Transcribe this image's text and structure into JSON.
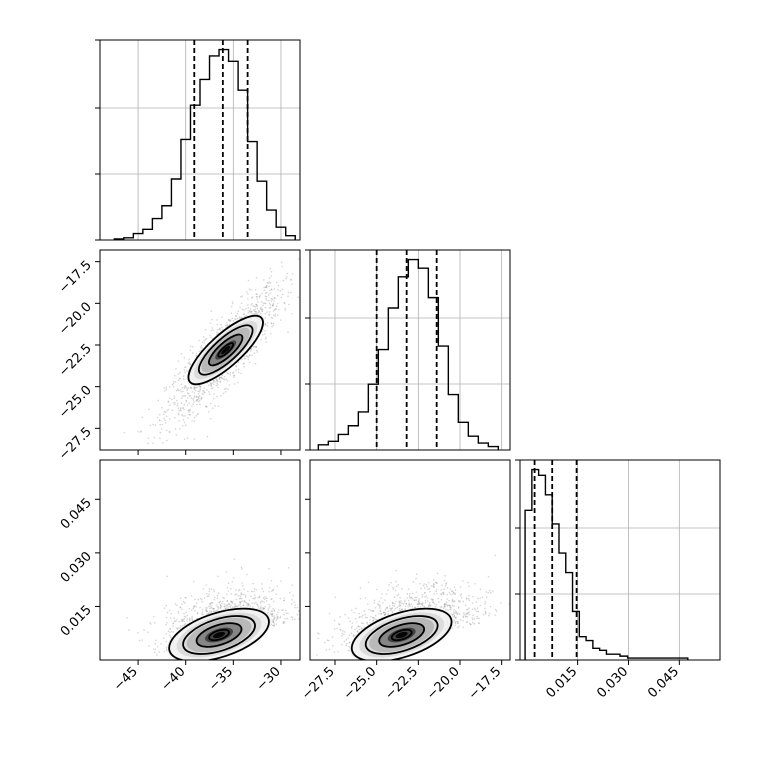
{
  "chart_data": [
    {
      "type": "histogram",
      "panel": "1,1",
      "grid": true,
      "xlim": [
        -49,
        -28
      ],
      "xticks": [
        -45,
        -40,
        -35,
        -30
      ],
      "x": [
        -47,
        -46,
        -45,
        -44,
        -43,
        -42,
        -41,
        -40,
        -39,
        -38,
        -37,
        -36,
        -35,
        -34,
        -33,
        -32,
        -31,
        -30,
        -29
      ],
      "values": [
        1,
        2,
        6,
        10,
        20,
        32,
        57,
        94,
        126,
        150,
        172,
        178,
        167,
        140,
        92,
        55,
        28,
        12,
        4
      ],
      "quantiles": [
        -39.1,
        -36.1,
        -33.5
      ],
      "xtick_labels": [
        "",
        "",
        "",
        ""
      ],
      "ytick_labels": [
        "",
        "",
        "",
        ""
      ]
    },
    {
      "type": "histogram",
      "panel": "2,2",
      "grid": true,
      "xlim": [
        -29,
        -17
      ],
      "xticks": [
        -27.5,
        -25.0,
        -22.5,
        -20.0,
        -17.5
      ],
      "x": [
        -28.2,
        -27.6,
        -27.0,
        -26.4,
        -25.8,
        -25.2,
        -24.6,
        -24.0,
        -23.4,
        -22.8,
        -22.2,
        -21.6,
        -21.0,
        -20.4,
        -19.8,
        -19.2,
        -18.6,
        -18.0
      ],
      "values": [
        3,
        5,
        9,
        14,
        22,
        38,
        58,
        82,
        100,
        110,
        105,
        88,
        60,
        32,
        16,
        8,
        4,
        2
      ],
      "quantiles": [
        -25.0,
        -23.2,
        -21.4
      ],
      "xtick_labels": [
        "",
        "",
        "",
        "",
        ""
      ],
      "ytick_labels": [
        "",
        "",
        "",
        ""
      ]
    },
    {
      "type": "histogram",
      "panel": "3,3",
      "grid": true,
      "xlim": [
        -0.002,
        0.057
      ],
      "xticks": [
        0.015,
        0.03,
        0.045
      ],
      "x": [
        0.0005,
        0.0025,
        0.0045,
        0.0065,
        0.0085,
        0.0105,
        0.0125,
        0.0145,
        0.0165,
        0.0185,
        0.0205,
        0.0225,
        0.0245,
        0.0265,
        0.0285,
        0.031,
        0.035,
        0.04,
        0.045
      ],
      "values": [
        77,
        98,
        95,
        85,
        70,
        55,
        45,
        25,
        12,
        10,
        6,
        5,
        3,
        3,
        2,
        1,
        1,
        1,
        1
      ],
      "quantiles": [
        0.0023,
        0.0075,
        0.0147
      ],
      "xtick_labels": [
        "0.015",
        "0.030",
        "0.045"
      ],
      "ytick_labels": [
        "",
        "",
        "",
        ""
      ]
    },
    {
      "type": "scatter",
      "panel": "2,1",
      "grid": false,
      "xlim": [
        -49,
        -28
      ],
      "ylim": [
        -28.8,
        -16.8
      ],
      "xticks": [
        -45,
        -40,
        -35,
        -30
      ],
      "yticks": [
        -27.5,
        -25.0,
        -22.5,
        -20.0,
        -17.5
      ],
      "xtick_labels": [
        "",
        "",
        "",
        ""
      ],
      "ytick_labels": [
        "−27.5",
        "−25.0",
        "−22.5",
        "−20.0",
        "−17.5"
      ]
    },
    {
      "type": "scatter",
      "panel": "3,1",
      "grid": false,
      "xlim": [
        -49,
        -28
      ],
      "ylim": [
        0,
        0.056
      ],
      "xticks": [
        -45,
        -40,
        -35,
        -30
      ],
      "yticks": [
        0.015,
        0.03,
        0.045
      ],
      "xtick_labels": [
        "−45",
        "−40",
        "−35",
        "−30"
      ],
      "ytick_labels": [
        "0.015",
        "0.030",
        "0.045"
      ]
    },
    {
      "type": "scatter",
      "panel": "3,2",
      "grid": false,
      "xlim": [
        -29,
        -17
      ],
      "ylim": [
        0,
        0.056
      ],
      "xticks": [
        -27.5,
        -25.0,
        -22.5,
        -20.0,
        -17.5
      ],
      "yticks": [
        0.015,
        0.03,
        0.045
      ],
      "xtick_labels": [
        "−27.5",
        "−25.0",
        "−22.5",
        "−20.0",
        "−17.5"
      ],
      "ytick_labels": [
        "",
        "",
        ""
      ]
    }
  ]
}
